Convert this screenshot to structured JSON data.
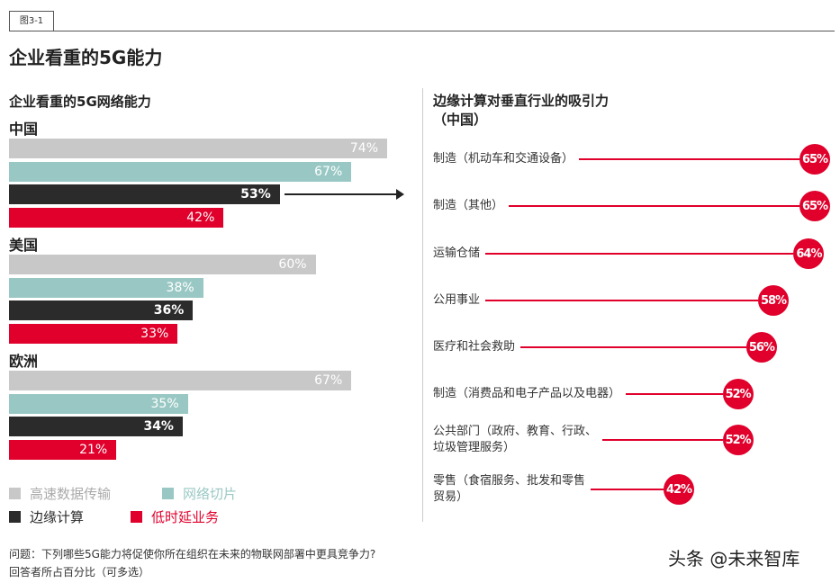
{
  "figure_tag": "图3-1",
  "title": "企业看重的5G能力",
  "chart_data": [
    {
      "type": "bar",
      "title": "企业看重的5G网络能力",
      "orientation": "horizontal",
      "groups": [
        "中国",
        "美国",
        "欧洲"
      ],
      "series": [
        {
          "name": "高速数据传输",
          "color": "#c8c8c8",
          "values": [
            74,
            60,
            67
          ]
        },
        {
          "name": "网络切片",
          "color": "#99c8c4",
          "values": [
            67,
            38,
            35
          ]
        },
        {
          "name": "边缘计算",
          "color": "#2b2b2b",
          "values": [
            53,
            36,
            34
          ]
        },
        {
          "name": "低时延业务",
          "color": "#e0002b",
          "values": [
            42,
            33,
            21
          ]
        }
      ],
      "unit": "%",
      "legend": "bottom-left"
    },
    {
      "type": "lollipop",
      "title": "边缘计算对垂直行业的吸引力\n（中国）",
      "color": "#e0002b",
      "categories": [
        "制造（机动车和交通设备）",
        "制造（其他）",
        "运输仓储",
        "公用事业",
        "医疗和社会救助",
        "制造（消费品和电子产品以及电器）",
        "公共部门（政府、教育、行政、\n垃圾管理服务）",
        "零售（食宿服务、批发和零售\n贸易）"
      ],
      "values": [
        65,
        65,
        64,
        58,
        56,
        52,
        52,
        42
      ],
      "unit": "%"
    }
  ],
  "footnote": {
    "question": "问题：下列哪些5G能力将促使你所在组织在未来的物联网部署中更具竞争力?",
    "note": "回答者所占百分比（可多选）"
  },
  "watermark": "头条 @未来智库"
}
